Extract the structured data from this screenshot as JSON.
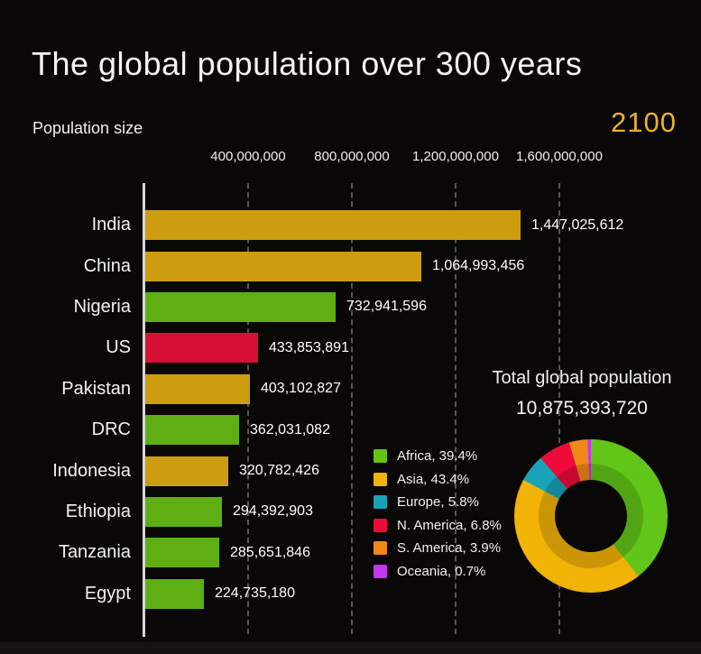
{
  "page": {
    "title": "The global population over 300 years",
    "background_color": "#0a0806",
    "accent_color": "#ecb22b"
  },
  "chart_data": [
    {
      "type": "bar",
      "orientation": "horizontal",
      "axis_title": "Population size",
      "year": "2100",
      "categories": [
        "India",
        "China",
        "Nigeria",
        "US",
        "Pakistan",
        "DRC",
        "Indonesia",
        "Ethiopia",
        "Tanzania",
        "Egypt"
      ],
      "values": [
        1447025612,
        1064993456,
        732941596,
        433853891,
        403102827,
        362031082,
        320782426,
        294392903,
        285651846,
        224735180
      ],
      "value_labels": [
        "1,447,025,612",
        "1,064,993,456",
        "732,941,596",
        "433,853,891",
        "403,102,827",
        "362,031,082",
        "320,782,426",
        "294,392,903",
        "285,651,846",
        "224,735,180"
      ],
      "bar_colors": [
        "#cd9d10",
        "#cd9d10",
        "#5fae13",
        "#d60f34",
        "#cd9d10",
        "#5fae13",
        "#cd9d10",
        "#5fae13",
        "#5fae13",
        "#5fae13"
      ],
      "tick_labels": [
        "400,000,000",
        "800,000,000",
        "1,200,000,000",
        "1,600,000,000"
      ],
      "tick_values": [
        400000000,
        800000000,
        1200000000,
        1600000000
      ],
      "xlim": [
        0,
        1840000000
      ],
      "grid": true,
      "grid_style": "dashed-vertical"
    },
    {
      "type": "pie",
      "subtype": "donut",
      "title": "Total global population",
      "total_label": "10,875,393,720",
      "start_angle_deg": 0,
      "direction": "clockwise",
      "legend_position": "left",
      "segments": [
        {
          "name": "Africa",
          "pct": 39.4,
          "color": "#62c618",
          "legend_label": "Africa, 39.4%"
        },
        {
          "name": "Asia",
          "pct": 43.4,
          "color": "#f2b307",
          "legend_label": "Asia, 43.4%"
        },
        {
          "name": "Europe",
          "pct": 5.8,
          "color": "#18a3b8",
          "legend_label": "Europe, 5.8%"
        },
        {
          "name": "N. America",
          "pct": 6.8,
          "color": "#ee0a3b",
          "legend_label": "N. America, 6.8%"
        },
        {
          "name": "S. America",
          "pct": 3.9,
          "color": "#ef8818",
          "legend_label": "S. America, 3.9%"
        },
        {
          "name": "Oceania",
          "pct": 0.7,
          "color": "#c636f0",
          "legend_label": "Oceania, 0.7%"
        }
      ]
    }
  ]
}
